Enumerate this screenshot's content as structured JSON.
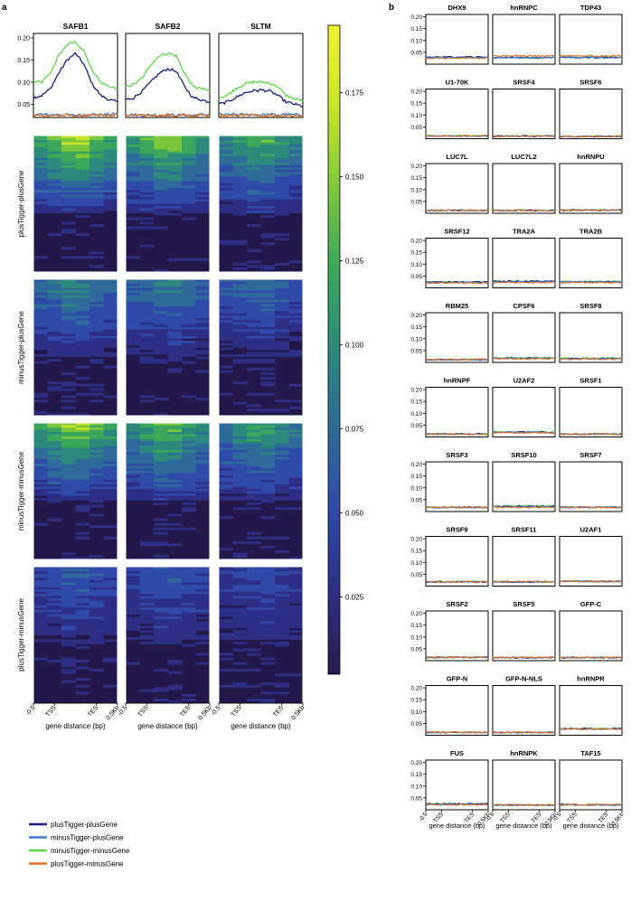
{
  "panel_labels": {
    "a": "a",
    "b": "b"
  },
  "colors": {
    "plusTigger-plusGene": "#1a1f7a",
    "minusTigger-plusGene": "#3f7ad6",
    "minusTigger-minusGene": "#5fd64a",
    "plusTigger-minusGene": "#e07020",
    "colormap": [
      "#2a1b4e",
      "#2d2f86",
      "#2f4aa8",
      "#2e6a9a",
      "#2c8a7c",
      "#3aa85a",
      "#7cc83c",
      "#c8e626",
      "#f2f230"
    ]
  },
  "legend": [
    {
      "label": "plusTigger-plusGene",
      "color": "#1a1f7a"
    },
    {
      "label": "minusTigger-plusGene",
      "color": "#3f7ad6"
    },
    {
      "label": "minusTigger-minusGene",
      "color": "#5fd64a"
    },
    {
      "label": "plusTigger-minusGene",
      "color": "#e07020"
    }
  ],
  "colorbar": {
    "ticks": [
      "0.175",
      "0.150",
      "0.125",
      "0.100",
      "0.075",
      "0.050",
      "0.025"
    ],
    "tick_values": [
      0.175,
      0.15,
      0.125,
      0.1,
      0.075,
      0.05,
      0.025
    ],
    "range": [
      0.002,
      0.195
    ]
  },
  "x_ticks": [
    "-0.5",
    "TSS",
    "TES",
    "0.5Kb"
  ],
  "xlabel": "gene distance (bp)",
  "heatmap_groups": [
    "plusTigger-plusGene",
    "minusTigger-plusGene",
    "minusTigger-minusGene",
    "plusTigger-minusGene"
  ],
  "chart_data": [
    {
      "type": "line",
      "panel": "a",
      "title": "",
      "xlabel": "gene distance (bp)",
      "ylim": [
        0.02,
        0.21
      ],
      "y_ticks": [
        "0.20",
        "0.15",
        "0.10",
        "0.05"
      ],
      "x_ticks": [
        "-0.5",
        "TSS",
        "TES",
        "0.5Kb"
      ],
      "x": [
        0,
        0.1,
        0.2,
        0.3,
        0.4,
        0.5,
        0.6,
        0.7,
        0.8,
        0.9,
        1.0
      ],
      "panels": [
        {
          "name": "SAFB1",
          "series": [
            {
              "name": "plusTigger-plusGene",
              "values": [
                0.065,
                0.07,
                0.085,
                0.12,
                0.15,
                0.165,
                0.14,
                0.095,
                0.07,
                0.06,
                0.055
              ]
            },
            {
              "name": "minusTigger-plusGene",
              "values": [
                0.028,
                0.027,
                0.026,
                0.027,
                0.026,
                0.025,
                0.026,
                0.027,
                0.026,
                0.027,
                0.028
              ]
            },
            {
              "name": "minusTigger-minusGene",
              "values": [
                0.1,
                0.1,
                0.12,
                0.16,
                0.185,
                0.19,
                0.17,
                0.125,
                0.1,
                0.09,
                0.085
              ]
            },
            {
              "name": "plusTigger-minusGene",
              "values": [
                0.025,
                0.024,
                0.025,
                0.024,
                0.025,
                0.024,
                0.025,
                0.024,
                0.025,
                0.024,
                0.026
              ]
            }
          ]
        },
        {
          "name": "SAFB2",
          "series": [
            {
              "name": "plusTigger-plusGene",
              "values": [
                0.06,
                0.065,
                0.08,
                0.1,
                0.12,
                0.13,
                0.125,
                0.09,
                0.065,
                0.06,
                0.055
              ]
            },
            {
              "name": "minusTigger-plusGene",
              "values": [
                0.027,
                0.026,
                0.025,
                0.026,
                0.025,
                0.026,
                0.025,
                0.026,
                0.025,
                0.026,
                0.027
              ]
            },
            {
              "name": "minusTigger-minusGene",
              "values": [
                0.09,
                0.095,
                0.11,
                0.14,
                0.16,
                0.165,
                0.16,
                0.12,
                0.09,
                0.085,
                0.08
              ]
            },
            {
              "name": "plusTigger-minusGene",
              "values": [
                0.024,
                0.025,
                0.024,
                0.025,
                0.024,
                0.025,
                0.024,
                0.025,
                0.024,
                0.025,
                0.024
              ]
            }
          ]
        },
        {
          "name": "SLTM",
          "series": [
            {
              "name": "plusTigger-plusGene",
              "values": [
                0.05,
                0.055,
                0.065,
                0.075,
                0.08,
                0.082,
                0.08,
                0.07,
                0.055,
                0.05,
                0.045
              ]
            },
            {
              "name": "minusTigger-plusGene",
              "values": [
                0.027,
                0.026,
                0.027,
                0.026,
                0.027,
                0.026,
                0.027,
                0.026,
                0.027,
                0.026,
                0.027
              ]
            },
            {
              "name": "minusTigger-minusGene",
              "values": [
                0.065,
                0.07,
                0.085,
                0.095,
                0.1,
                0.1,
                0.098,
                0.09,
                0.07,
                0.062,
                0.058
              ]
            },
            {
              "name": "plusTigger-minusGene",
              "values": [
                0.024,
                0.024,
                0.025,
                0.024,
                0.025,
                0.024,
                0.025,
                0.024,
                0.025,
                0.024,
                0.025
              ]
            }
          ]
        }
      ]
    },
    {
      "type": "line",
      "panel": "b",
      "title": "",
      "xlabel": "gene distance (bp)",
      "ylim": [
        0.0,
        0.21
      ],
      "y_ticks": [
        "0.20",
        "0.15",
        "0.10",
        "0.05"
      ],
      "x_ticks": [
        "-0.5",
        "TSS",
        "TES",
        "0.5Kb"
      ],
      "panels": [
        {
          "name": "DHX9",
          "levels": [
            0.03,
            0.028,
            0.028,
            0.025
          ]
        },
        {
          "name": "hnRNPC",
          "levels": [
            0.028,
            0.028,
            0.028,
            0.035
          ]
        },
        {
          "name": "TDP43",
          "levels": [
            0.028,
            0.028,
            0.03,
            0.035
          ]
        },
        {
          "name": "U1-70K",
          "levels": [
            0.012,
            0.012,
            0.013,
            0.012
          ]
        },
        {
          "name": "SRSF4",
          "levels": [
            0.011,
            0.011,
            0.012,
            0.011
          ]
        },
        {
          "name": "SRSF6",
          "levels": [
            0.01,
            0.01,
            0.011,
            0.01
          ]
        },
        {
          "name": "LUC7L",
          "levels": [
            0.012,
            0.012,
            0.013,
            0.012
          ]
        },
        {
          "name": "LUC7L2",
          "levels": [
            0.012,
            0.012,
            0.013,
            0.012
          ]
        },
        {
          "name": "hnRNPU",
          "levels": [
            0.013,
            0.013,
            0.014,
            0.013
          ]
        },
        {
          "name": "SRSF12",
          "levels": [
            0.025,
            0.022,
            0.025,
            0.02
          ]
        },
        {
          "name": "TRA2A",
          "levels": [
            0.028,
            0.025,
            0.028,
            0.022
          ]
        },
        {
          "name": "TRA2B",
          "levels": [
            0.025,
            0.025,
            0.027,
            0.022
          ]
        },
        {
          "name": "RBM25",
          "levels": [
            0.012,
            0.012,
            0.012,
            0.012
          ]
        },
        {
          "name": "CPSF6",
          "levels": [
            0.018,
            0.017,
            0.02,
            0.015
          ]
        },
        {
          "name": "SRSF8",
          "levels": [
            0.016,
            0.016,
            0.018,
            0.014
          ]
        },
        {
          "name": "hnRNPF",
          "levels": [
            0.012,
            0.012,
            0.012,
            0.012
          ]
        },
        {
          "name": "U2AF2",
          "levels": [
            0.02,
            0.02,
            0.022,
            0.018
          ]
        },
        {
          "name": "SRSF1",
          "levels": [
            0.012,
            0.012,
            0.012,
            0.012
          ]
        },
        {
          "name": "SRSF3",
          "levels": [
            0.018,
            0.017,
            0.018,
            0.018
          ]
        },
        {
          "name": "SRSF10",
          "levels": [
            0.022,
            0.02,
            0.024,
            0.018
          ]
        },
        {
          "name": "SRSF7",
          "levels": [
            0.018,
            0.018,
            0.018,
            0.018
          ]
        },
        {
          "name": "SRSF9",
          "levels": [
            0.018,
            0.018,
            0.019,
            0.018
          ]
        },
        {
          "name": "SRSF11",
          "levels": [
            0.018,
            0.018,
            0.018,
            0.019
          ]
        },
        {
          "name": "U2AF1",
          "levels": [
            0.02,
            0.02,
            0.02,
            0.02
          ]
        },
        {
          "name": "SRSF2",
          "levels": [
            0.014,
            0.014,
            0.014,
            0.014
          ]
        },
        {
          "name": "SRSF5",
          "levels": [
            0.013,
            0.013,
            0.013,
            0.013
          ]
        },
        {
          "name": "GFP-C",
          "levels": [
            0.013,
            0.013,
            0.013,
            0.013
          ]
        },
        {
          "name": "GFP-N",
          "levels": [
            0.012,
            0.012,
            0.012,
            0.013
          ]
        },
        {
          "name": "GFP-N-NLS",
          "levels": [
            0.012,
            0.012,
            0.012,
            0.012
          ]
        },
        {
          "name": "hnRNPR",
          "levels": [
            0.028,
            0.026,
            0.028,
            0.026
          ]
        },
        {
          "name": "FUS",
          "levels": [
            0.025,
            0.022,
            0.025,
            0.022
          ]
        },
        {
          "name": "hnRNPK",
          "levels": [
            0.02,
            0.019,
            0.02,
            0.02
          ]
        },
        {
          "name": "TAF15",
          "levels": [
            0.022,
            0.02,
            0.022,
            0.022
          ]
        }
      ]
    }
  ]
}
